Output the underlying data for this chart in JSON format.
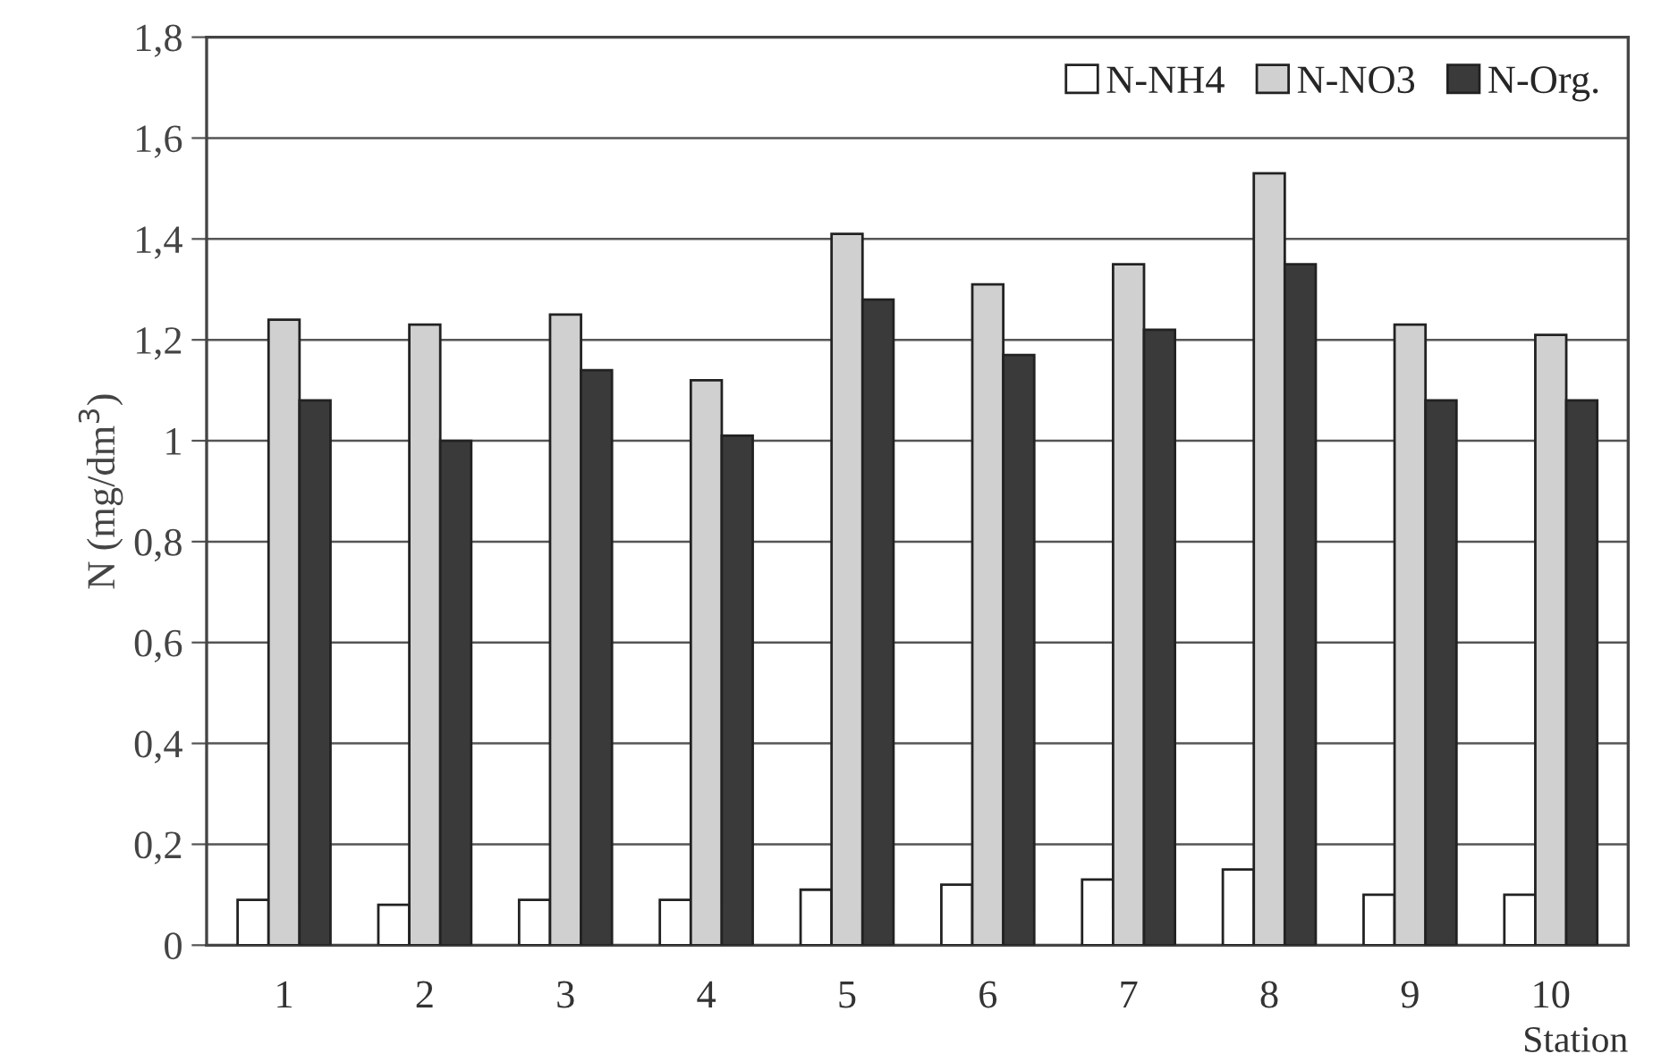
{
  "chart_data": {
    "type": "bar",
    "xlabel": "Station",
    "ylabel": "N (mg/dm$^{3}$)",
    "categories": [
      "1",
      "2",
      "3",
      "4",
      "5",
      "6",
      "7",
      "8",
      "9",
      "10"
    ],
    "series": [
      {
        "name": "N-NH4",
        "color": "#ffffff",
        "values": [
          0.09,
          0.08,
          0.09,
          0.09,
          0.11,
          0.12,
          0.13,
          0.15,
          0.1,
          0.1
        ]
      },
      {
        "name": "N-NO3",
        "color": "#d0d0d0",
        "values": [
          1.24,
          1.23,
          1.25,
          1.12,
          1.41,
          1.31,
          1.35,
          1.53,
          1.23,
          1.21
        ]
      },
      {
        "name": "N-Org.",
        "color": "#3a3a3a",
        "values": [
          1.08,
          1.0,
          1.14,
          1.01,
          1.28,
          1.17,
          1.22,
          1.35,
          1.08,
          1.08
        ]
      }
    ],
    "ylim": [
      0,
      1.8
    ],
    "yticks": [
      0,
      {
        "value": 0.2,
        "label": "0,2"
      },
      {
        "value": 0.4,
        "label": "0,4"
      },
      {
        "value": 0.6,
        "label": "0,6"
      },
      {
        "value": 0.8,
        "label": "0,8"
      },
      1,
      {
        "value": 1.2,
        "label": "1,2"
      },
      {
        "value": 1.4,
        "label": "1,4"
      },
      {
        "value": 1.6,
        "label": "1,6"
      },
      {
        "value": 1.8,
        "label": "1,8"
      }
    ],
    "grid": "y",
    "legend": "top right"
  }
}
